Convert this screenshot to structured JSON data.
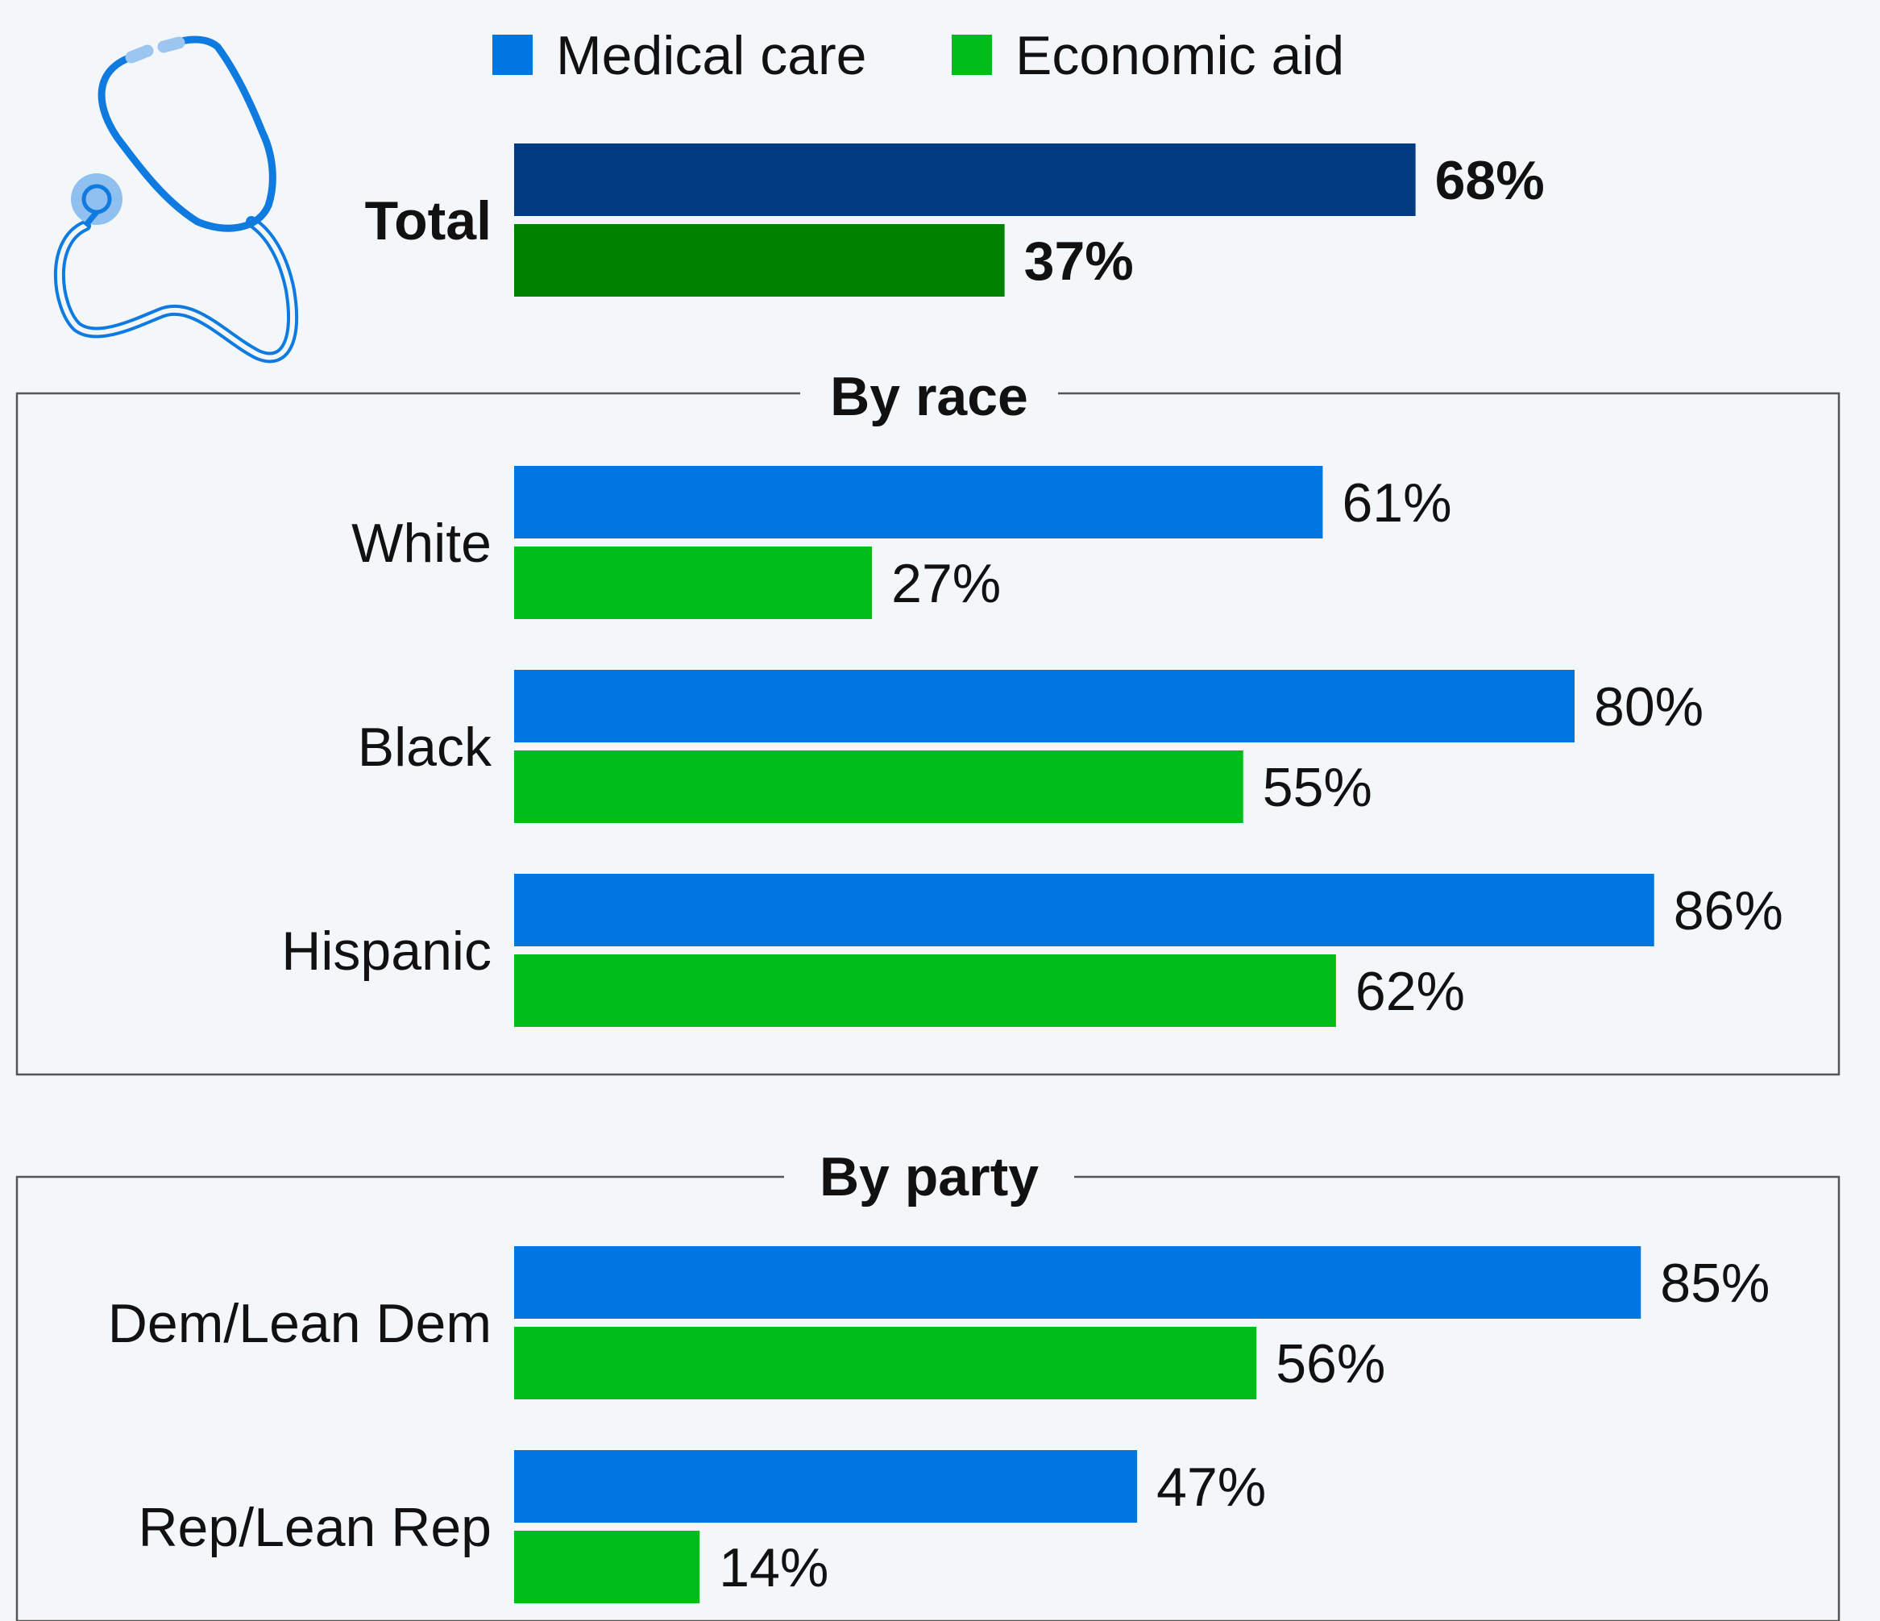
{
  "legend": [
    {
      "name": "Medical care",
      "color": "#0077e0"
    },
    {
      "name": "Economic aid",
      "color": "#00bd1a"
    }
  ],
  "colors": {
    "total_medical": "#003a80",
    "total_economic": "#008200",
    "frame": "#555555",
    "background": "#f3f7fa",
    "icon": "#0f7ae0"
  },
  "icon": "stethoscope-icon",
  "sections": [
    {
      "key": "total",
      "title": ""
    },
    {
      "key": "race",
      "title": "By race"
    },
    {
      "key": "party",
      "title": "By party"
    }
  ],
  "chart_data": {
    "type": "bar",
    "orientation": "horizontal",
    "value_suffix": "%",
    "xlim": [
      0,
      100
    ],
    "series": [
      {
        "name": "Medical care",
        "values": [
          68,
          61,
          80,
          86,
          85,
          47
        ]
      },
      {
        "name": "Economic aid",
        "values": [
          37,
          27,
          55,
          62,
          56,
          14
        ]
      }
    ],
    "categories": [
      "Total",
      "White",
      "Black",
      "Hispanic",
      "Dem/Lean Dem",
      "Rep/Lean Rep"
    ],
    "groups": [
      "total",
      "race",
      "race",
      "race",
      "party",
      "party"
    ],
    "title": "",
    "xlabel": "",
    "ylabel": "",
    "grid": false,
    "legend_position": "top"
  }
}
